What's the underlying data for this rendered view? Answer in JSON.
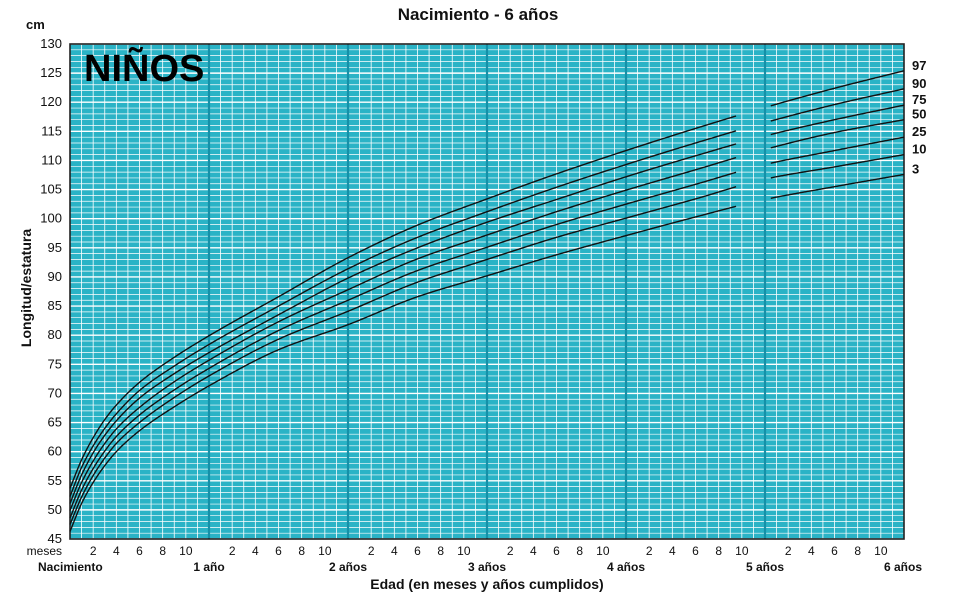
{
  "chart_data": {
    "type": "line",
    "title": "Nacimiento - 6 años",
    "badge": "NIÑOS",
    "unit": "cm",
    "xlabel": "Edad (en meses y años cumplidos)",
    "ylabel": "Longitud/estatura",
    "x_unit": "months",
    "xlim": [
      0,
      72
    ],
    "ylim": [
      45,
      130
    ],
    "y_major_step": 5,
    "y_minor_step": 1,
    "y_ticks": [
      45,
      50,
      55,
      60,
      65,
      70,
      75,
      80,
      85,
      90,
      95,
      100,
      105,
      110,
      115,
      120,
      125,
      130
    ],
    "month_tick_prefix": "meses",
    "month_ticks": [
      2,
      4,
      6,
      8,
      10
    ],
    "year_labels": [
      {
        "month": 0,
        "label": "Nacimiento"
      },
      {
        "month": 12,
        "label": "1 año"
      },
      {
        "month": 24,
        "label": "2 años"
      },
      {
        "month": 36,
        "label": "3 años"
      },
      {
        "month": 48,
        "label": "4 años"
      },
      {
        "month": 60,
        "label": "5 años"
      },
      {
        "month": 72,
        "label": "6 años"
      }
    ],
    "gap_between_months": [
      57.5,
      60.5
    ],
    "grid": true,
    "colors": {
      "grid_bg": "#2ab3c6",
      "grid_minor": "#ffffff",
      "grid_major": "#1590a8",
      "curves": "#111111"
    },
    "x": [
      0,
      1,
      2,
      3,
      4,
      6,
      9,
      12,
      18,
      24,
      30,
      36,
      42,
      48,
      54,
      60,
      66,
      72
    ],
    "series": [
      {
        "name": "97",
        "values": [
          53.7,
          58.6,
          62.4,
          65.5,
          68.0,
          71.9,
          76.2,
          79.9,
          86.6,
          93.3,
          98.9,
          103.4,
          107.7,
          111.7,
          115.5,
          119.1,
          122.4,
          125.4
        ]
      },
      {
        "name": "90",
        "values": [
          52.3,
          57.3,
          61.0,
          64.0,
          66.5,
          70.5,
          74.7,
          78.4,
          85.0,
          91.4,
          96.8,
          101.2,
          105.4,
          109.3,
          113.0,
          116.5,
          119.6,
          122.3
        ]
      },
      {
        "name": "75",
        "values": [
          51.1,
          56.0,
          59.8,
          62.8,
          65.3,
          69.2,
          73.4,
          77.0,
          83.5,
          89.8,
          95.0,
          99.4,
          103.3,
          107.2,
          110.8,
          114.2,
          117.0,
          119.5
        ]
      },
      {
        "name": "50",
        "values": [
          49.9,
          54.7,
          58.4,
          61.4,
          63.9,
          67.6,
          72.0,
          75.7,
          82.3,
          87.8,
          93.1,
          97.2,
          101.2,
          104.9,
          108.4,
          111.9,
          114.8,
          117.0
        ]
      },
      {
        "name": "25",
        "values": [
          48.6,
          53.4,
          57.1,
          60.1,
          62.6,
          66.3,
          70.6,
          74.3,
          80.8,
          86.0,
          91.1,
          95.1,
          99.0,
          102.5,
          105.9,
          109.3,
          111.7,
          114.0
        ]
      },
      {
        "name": "10",
        "values": [
          47.5,
          52.2,
          55.9,
          58.9,
          61.4,
          65.0,
          69.3,
          73.0,
          79.3,
          84.1,
          89.1,
          93.0,
          96.8,
          100.1,
          103.4,
          106.8,
          108.9,
          111.0
        ]
      },
      {
        "name": "3",
        "values": [
          46.3,
          51.1,
          54.7,
          57.6,
          60.0,
          63.6,
          67.7,
          71.3,
          77.5,
          81.8,
          86.6,
          90.2,
          93.8,
          97.1,
          100.3,
          103.3,
          105.5,
          107.6
        ]
      }
    ]
  }
}
